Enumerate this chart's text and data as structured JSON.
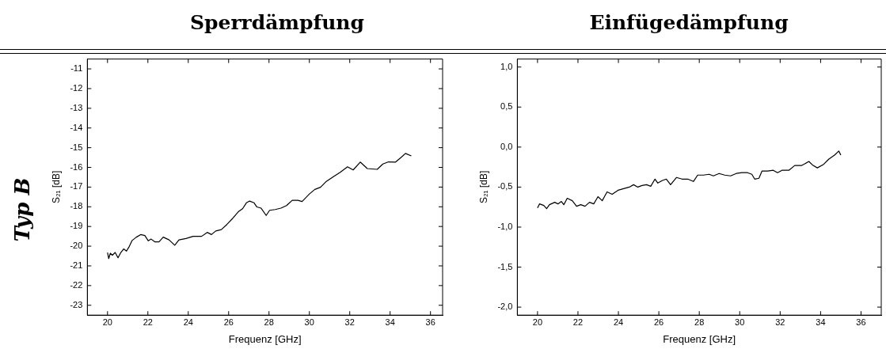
{
  "chart_data": [
    {
      "type": "line",
      "title": "Sperrdämpfung",
      "xlabel": "Frequenz [GHz]",
      "ylabel": "S₂₁ [dB]",
      "annotations": [
        "Typ B"
      ],
      "legend": false,
      "grid": false,
      "marker": "none",
      "line_style": "solid",
      "xlim": [
        19,
        36.6
      ],
      "xticks": [
        20,
        22,
        24,
        26,
        28,
        30,
        32,
        34,
        36
      ],
      "ylim": [
        -23.5,
        -10.5
      ],
      "yticks": [
        -11,
        -12,
        -13,
        -14,
        -15,
        -16,
        -17,
        -18,
        -19,
        -20,
        -21,
        -22,
        -23
      ],
      "series": [
        {
          "color": "#000000",
          "x": [
            20,
            20.06,
            20.14,
            20.24,
            20.38,
            20.52,
            20.66,
            20.8,
            20.94,
            21.08,
            21.22,
            21.43,
            21.64,
            21.85,
            22.02,
            22.16,
            22.34,
            22.55,
            22.76,
            23.05,
            23.33,
            23.54,
            23.89,
            24.24,
            24.66,
            24.94,
            25.15,
            25.36,
            25.64,
            25.92,
            26.2,
            26.48,
            26.69,
            26.88,
            27.04,
            27.26,
            27.4,
            27.61,
            27.86,
            28.03,
            28.31,
            28.59,
            28.87,
            29.15,
            29.43,
            29.64,
            30,
            30.27,
            30.55,
            30.84,
            31.19,
            31.54,
            31.89,
            32.17,
            32.52,
            32.87,
            33.36,
            33.64,
            33.92,
            34.27,
            34.55,
            34.76,
            35.05
          ],
          "values": [
            -20.32,
            -20.63,
            -20.36,
            -20.46,
            -20.32,
            -20.59,
            -20.32,
            -20.14,
            -20.25,
            -20.01,
            -19.71,
            -19.54,
            -19.41,
            -19.46,
            -19.73,
            -19.64,
            -19.78,
            -19.78,
            -19.54,
            -19.68,
            -19.95,
            -19.68,
            -19.61,
            -19.5,
            -19.5,
            -19.3,
            -19.41,
            -19.23,
            -19.16,
            -18.89,
            -18.59,
            -18.25,
            -18.1,
            -17.8,
            -17.71,
            -17.8,
            -18.01,
            -18.07,
            -18.44,
            -18.18,
            -18.14,
            -18.07,
            -17.94,
            -17.67,
            -17.67,
            -17.73,
            -17.35,
            -17.12,
            -17.01,
            -16.71,
            -16.47,
            -16.24,
            -15.97,
            -16.13,
            -15.73,
            -16.06,
            -16.1,
            -15.83,
            -15.72,
            -15.73,
            -15.49,
            -15.29,
            -15.42
          ]
        }
      ]
    },
    {
      "type": "line",
      "title": "Einfügedämpfung",
      "xlabel": "Frequenz [GHz]",
      "ylabel": "S₂₁ [dB]",
      "legend": false,
      "grid": false,
      "marker": "none",
      "line_style": "solid",
      "xlim": [
        19,
        37
      ],
      "xticks": [
        20,
        22,
        24,
        26,
        28,
        30,
        32,
        34,
        36
      ],
      "ylim": [
        -2.1,
        1.1
      ],
      "yticks": [
        {
          "value": 1,
          "label": "1,0"
        },
        {
          "value": 0.5,
          "label": "0,5"
        },
        {
          "value": 0,
          "label": "0,0"
        },
        {
          "value": -0.5,
          "label": "-0,5"
        },
        {
          "value": -1,
          "label": "-1,0"
        },
        {
          "value": -1.5,
          "label": "-1,5"
        },
        {
          "value": -2,
          "label": "-2,0"
        }
      ],
      "series": [
        {
          "color": "#000000",
          "x": [
            20,
            20.1,
            20.31,
            20.45,
            20.59,
            20.85,
            21.01,
            21.18,
            21.3,
            21.47,
            21.72,
            21.93,
            22.14,
            22.35,
            22.57,
            22.78,
            22.99,
            23.2,
            23.44,
            23.69,
            23.98,
            24.26,
            24.54,
            24.75,
            24.96,
            25.17,
            25.39,
            25.6,
            25.81,
            25.95,
            26.16,
            26.37,
            26.58,
            26.87,
            27.15,
            27.43,
            27.71,
            27.92,
            28.2,
            28.49,
            28.7,
            28.98,
            29.26,
            29.55,
            29.83,
            30.11,
            30.39,
            30.6,
            30.74,
            30.95,
            31.1,
            31.38,
            31.66,
            31.87,
            32.09,
            32.43,
            32.72,
            33.07,
            33.42,
            33.63,
            33.84,
            34.13,
            34.41,
            34.69,
            34.9,
            35
          ],
          "values": [
            -0.76,
            -0.71,
            -0.73,
            -0.77,
            -0.72,
            -0.69,
            -0.71,
            -0.68,
            -0.72,
            -0.64,
            -0.67,
            -0.74,
            -0.72,
            -0.74,
            -0.69,
            -0.71,
            -0.62,
            -0.67,
            -0.56,
            -0.59,
            -0.54,
            -0.52,
            -0.5,
            -0.47,
            -0.5,
            -0.48,
            -0.47,
            -0.49,
            -0.4,
            -0.45,
            -0.42,
            -0.4,
            -0.47,
            -0.38,
            -0.4,
            -0.4,
            -0.43,
            -0.35,
            -0.35,
            -0.34,
            -0.36,
            -0.33,
            -0.35,
            -0.36,
            -0.33,
            -0.32,
            -0.32,
            -0.34,
            -0.4,
            -0.39,
            -0.3,
            -0.3,
            -0.29,
            -0.32,
            -0.29,
            -0.29,
            -0.23,
            -0.23,
            -0.18,
            -0.23,
            -0.26,
            -0.22,
            -0.15,
            -0.1,
            -0.05,
            -0.1
          ]
        }
      ]
    }
  ]
}
